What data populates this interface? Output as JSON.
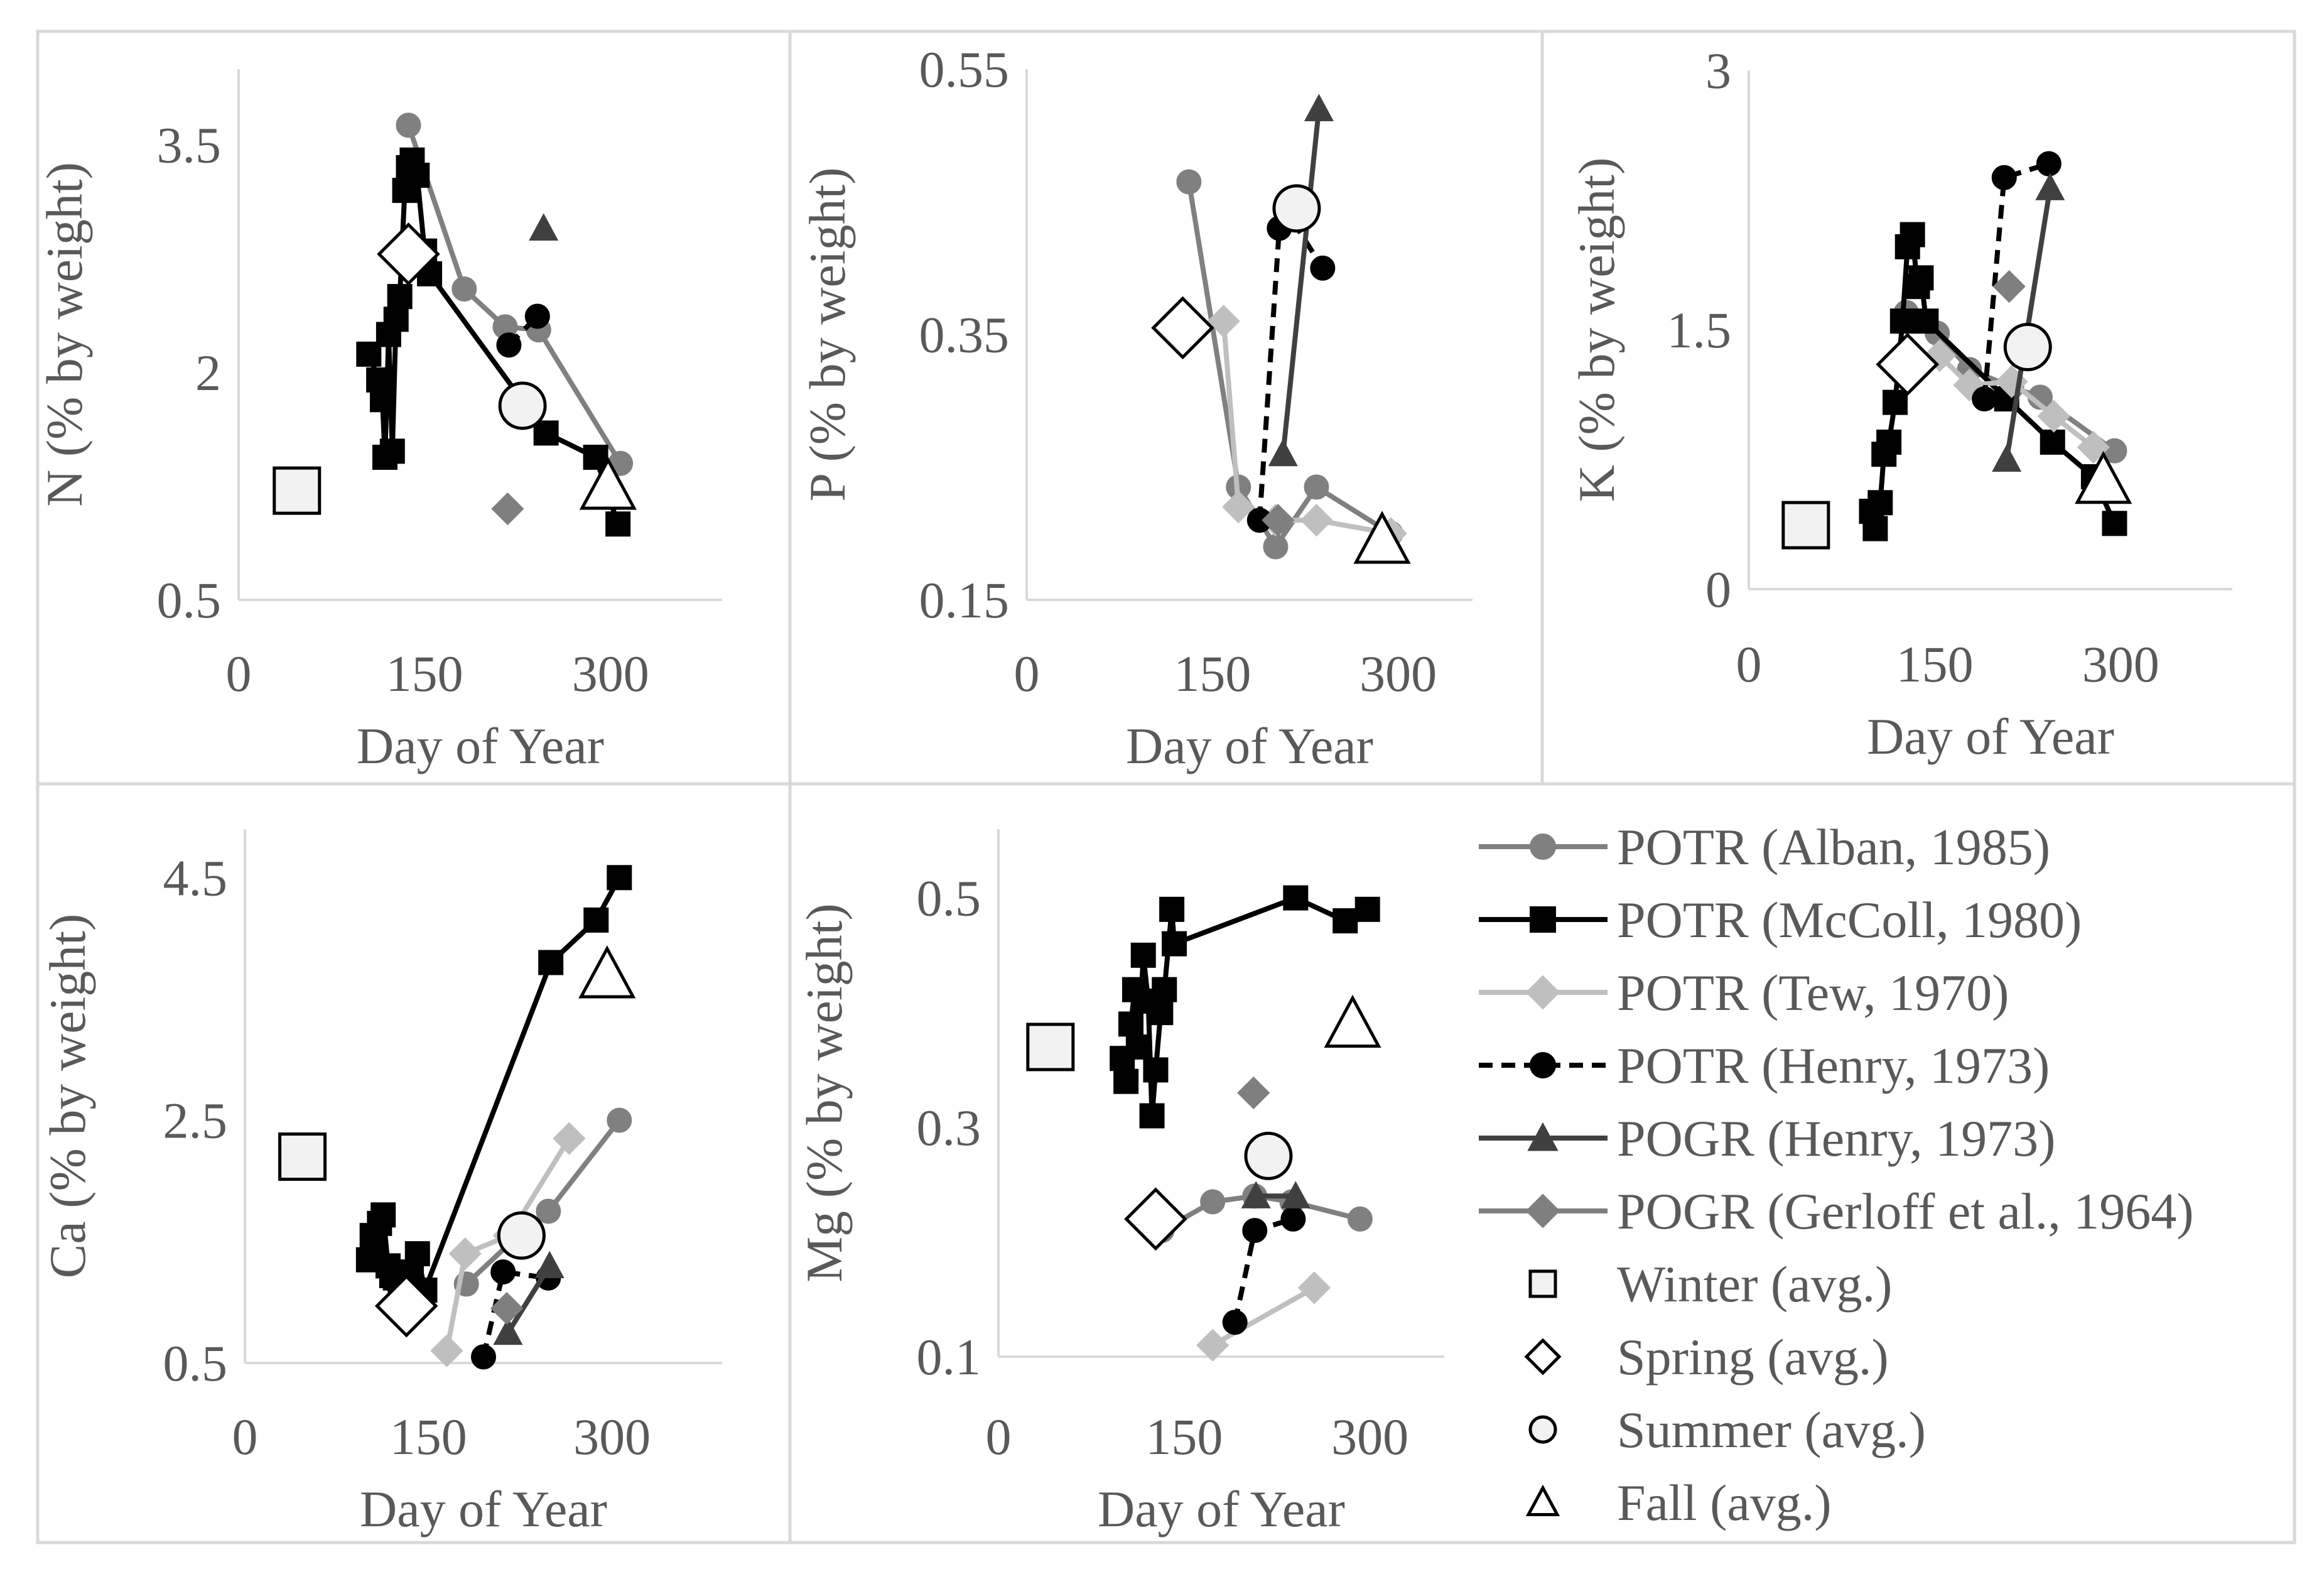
{
  "legend": [
    {
      "key": "alban",
      "label": "POTR (Alban, 1985)",
      "color": "#808080",
      "marker": "circle",
      "dash": false,
      "line": true
    },
    {
      "key": "mccoll",
      "label": "POTR (McColl, 1980)",
      "color": "#000000",
      "marker": "square",
      "dash": false,
      "line": true
    },
    {
      "key": "tew",
      "label": "POTR (Tew, 1970)",
      "color": "#bfbfbf",
      "marker": "diamond",
      "dash": false,
      "line": true
    },
    {
      "key": "henry_potr",
      "label": "POTR (Henry, 1973)",
      "color": "#000000",
      "marker": "circle",
      "dash": true,
      "line": true
    },
    {
      "key": "henry_pogr",
      "label": "POGR (Henry, 1973)",
      "color": "#404040",
      "marker": "triangle",
      "dash": false,
      "line": true
    },
    {
      "key": "gerloff",
      "label": "POGR (Gerloff et al., 1964)",
      "color": "#7f7f7f",
      "marker": "diamond",
      "dash": false,
      "line": true
    },
    {
      "key": "winter",
      "label": "Winter (avg.)",
      "color": "#f2f2f2",
      "marker": "square",
      "dash": false,
      "line": false
    },
    {
      "key": "spring",
      "label": "Spring (avg.)",
      "color": "#ffffff",
      "marker": "diamond",
      "dash": false,
      "line": false
    },
    {
      "key": "summer",
      "label": "Summer (avg.)",
      "color": "#f2f2f2",
      "marker": "circle",
      "dash": false,
      "line": false
    },
    {
      "key": "fall",
      "label": "Fall (avg.)",
      "color": "#ffffff",
      "marker": "triangle",
      "dash": false,
      "line": false
    }
  ],
  "chart_data": [
    {
      "type": "line",
      "id": "N",
      "xlabel": "Day of Year",
      "ylabel": "N (% by weight)",
      "xlim": [
        0,
        390
      ],
      "ylim": [
        0.5,
        4.0
      ],
      "xticks": [
        "0",
        "150",
        "300"
      ],
      "xtick_values": [
        0,
        150,
        300
      ],
      "yticks": [
        "0.5",
        "2",
        "3.5"
      ],
      "ytick_values": [
        0.5,
        2,
        3.5
      ],
      "series": [
        {
          "key": "alban",
          "x": [
            137,
            182,
            215,
            242,
            308
          ],
          "y": [
            3.63,
            2.55,
            2.3,
            2.28,
            1.4
          ]
        },
        {
          "key": "mccoll",
          "x": [
            105,
            113,
            116,
            118,
            121,
            124,
            127,
            130,
            134,
            137,
            140,
            144,
            150,
            154,
            248,
            288,
            306
          ],
          "y": [
            2.12,
            1.95,
            1.82,
            1.44,
            2.25,
            1.48,
            2.35,
            2.5,
            3.2,
            3.35,
            3.4,
            3.3,
            2.8,
            2.65,
            1.6,
            1.44,
            1.0
          ]
        },
        {
          "key": "henry_potr",
          "x": [
            218,
            241
          ],
          "y": [
            2.18,
            2.37
          ]
        },
        {
          "key": "henry_pogr",
          "x": [
            246
          ],
          "y": [
            2.95
          ]
        },
        {
          "key": "gerloff",
          "x": [
            217
          ],
          "y": [
            1.1
          ]
        },
        {
          "key": "winter",
          "x": [
            47
          ],
          "y": [
            1.22
          ]
        },
        {
          "key": "spring",
          "x": [
            137
          ],
          "y": [
            2.78
          ]
        },
        {
          "key": "summer",
          "x": [
            229
          ],
          "y": [
            1.78
          ]
        },
        {
          "key": "fall",
          "x": [
            298
          ],
          "y": [
            1.25
          ]
        }
      ]
    },
    {
      "type": "line",
      "id": "P",
      "xlabel": "Day of Year",
      "ylabel": "P (% by weight)",
      "xlim": [
        0,
        360
      ],
      "ylim": [
        0.15,
        0.55
      ],
      "xticks": [
        "0",
        "150",
        "300"
      ],
      "xtick_values": [
        0,
        150,
        300
      ],
      "yticks": [
        "0.15",
        "0.35",
        "0.55"
      ],
      "ytick_values": [
        0.15,
        0.35,
        0.55
      ],
      "series": [
        {
          "key": "alban",
          "x": [
            131,
            171,
            201,
            234,
            294
          ],
          "y": [
            0.465,
            0.235,
            0.19,
            0.235,
            0.2
          ]
        },
        {
          "key": "tew",
          "x": [
            159,
            171,
            201,
            234,
            294
          ],
          "y": [
            0.36,
            0.22,
            0.21,
            0.21,
            0.2
          ]
        },
        {
          "key": "henry_potr",
          "x": [
            188,
            204,
            212,
            239
          ],
          "y": [
            0.21,
            0.43,
            0.44,
            0.4
          ]
        },
        {
          "key": "henry_pogr",
          "x": [
            207,
            236
          ],
          "y": [
            0.26,
            0.52
          ]
        },
        {
          "key": "gerloff",
          "x": [
            203
          ],
          "y": [
            0.21
          ]
        },
        {
          "key": "spring",
          "x": [
            126
          ],
          "y": [
            0.355
          ]
        },
        {
          "key": "summer",
          "x": [
            218
          ],
          "y": [
            0.445
          ]
        },
        {
          "key": "fall",
          "x": [
            287
          ],
          "y": [
            0.195
          ]
        }
      ]
    },
    {
      "type": "line",
      "id": "K",
      "xlabel": "Day of Year",
      "ylabel": "K (% by weight)",
      "xlim": [
        0,
        390
      ],
      "ylim": [
        0,
        3
      ],
      "xticks": [
        "0",
        "150",
        "300"
      ],
      "xtick_values": [
        0,
        150,
        300
      ],
      "yticks": [
        "0",
        "1.5",
        "3"
      ],
      "ytick_values": [
        0,
        1.5,
        3
      ],
      "series": [
        {
          "key": "alban",
          "x": [
            127,
            152,
            178,
            212,
            235,
            295
          ],
          "y": [
            1.6,
            1.48,
            1.27,
            1.17,
            1.11,
            0.8
          ]
        },
        {
          "key": "mccoll",
          "x": [
            99,
            102,
            106,
            109,
            113,
            118,
            124,
            128,
            132,
            136,
            139,
            143,
            208,
            245,
            278,
            295
          ],
          "y": [
            0.45,
            0.35,
            0.5,
            0.78,
            0.85,
            1.08,
            1.55,
            1.98,
            2.05,
            1.75,
            1.8,
            1.55,
            1.1,
            0.85,
            0.65,
            0.38
          ]
        },
        {
          "key": "tew",
          "x": [
            154,
            178,
            212,
            246,
            278
          ],
          "y": [
            1.35,
            1.18,
            1.2,
            1.0,
            0.82
          ]
        },
        {
          "key": "henry_potr",
          "x": [
            190,
            206,
            242
          ],
          "y": [
            1.1,
            2.38,
            2.46
          ]
        },
        {
          "key": "henry_pogr",
          "x": [
            208,
            243
          ],
          "y": [
            0.75,
            2.32
          ]
        },
        {
          "key": "gerloff",
          "x": [
            210
          ],
          "y": [
            1.75
          ]
        },
        {
          "key": "winter",
          "x": [
            46
          ],
          "y": [
            0.37
          ]
        },
        {
          "key": "spring",
          "x": [
            128
          ],
          "y": [
            1.3
          ]
        },
        {
          "key": "summer",
          "x": [
            225
          ],
          "y": [
            1.4
          ]
        },
        {
          "key": "fall",
          "x": [
            286
          ],
          "y": [
            0.63
          ]
        }
      ]
    },
    {
      "type": "line",
      "id": "Ca",
      "xlabel": "Day of Year",
      "ylabel": "Ca (% by weight)",
      "xlim": [
        0,
        390
      ],
      "ylim": [
        0.5,
        4.9
      ],
      "xticks": [
        "0",
        "150",
        "300"
      ],
      "xtick_values": [
        0,
        150,
        300
      ],
      "yticks": [
        "0.5",
        "2.5",
        "4.5"
      ],
      "ytick_values": [
        0.5,
        2.5,
        4.5
      ],
      "series": [
        {
          "key": "alban",
          "x": [
            181,
            218,
            248,
            306
          ],
          "y": [
            1.15,
            1.5,
            1.75,
            2.5
          ]
        },
        {
          "key": "mccoll",
          "x": [
            101,
            104,
            106,
            110,
            113,
            117,
            120,
            123,
            127,
            130,
            136,
            141,
            147,
            250,
            287,
            306
          ],
          "y": [
            1.35,
            1.55,
            1.45,
            1.65,
            1.72,
            1.3,
            1.22,
            1.2,
            1.15,
            1.1,
            1.25,
            1.4,
            1.1,
            3.8,
            4.15,
            4.5
          ]
        },
        {
          "key": "tew",
          "x": [
            165,
            180,
            216,
            265
          ],
          "y": [
            0.6,
            1.4,
            1.55,
            2.35
          ]
        },
        {
          "key": "henry_potr",
          "x": [
            195,
            211,
            248
          ],
          "y": [
            0.55,
            1.25,
            1.2
          ]
        },
        {
          "key": "henry_pogr",
          "x": [
            215,
            249
          ],
          "y": [
            0.75,
            1.3
          ]
        },
        {
          "key": "gerloff",
          "x": [
            214
          ],
          "y": [
            0.95
          ]
        },
        {
          "key": "winter",
          "x": [
            47
          ],
          "y": [
            2.2
          ]
        },
        {
          "key": "spring",
          "x": [
            132
          ],
          "y": [
            0.97
          ]
        },
        {
          "key": "summer",
          "x": [
            226
          ],
          "y": [
            1.55
          ]
        },
        {
          "key": "fall",
          "x": [
            296
          ],
          "y": [
            3.7
          ]
        }
      ]
    },
    {
      "type": "line",
      "id": "Mg",
      "xlabel": "Day of Year",
      "ylabel": "Mg (% by weight)",
      "xlim": [
        0,
        360
      ],
      "ylim": [
        0.1,
        0.56
      ],
      "xticks": [
        "0",
        "150",
        "300"
      ],
      "xtick_values": [
        0,
        150,
        300
      ],
      "yticks": [
        "0.1",
        "0.3",
        "0.5"
      ],
      "ytick_values": [
        0.1,
        0.3,
        0.5
      ],
      "series": [
        {
          "key": "alban",
          "x": [
            132,
            173,
            207,
            237,
            292
          ],
          "y": [
            0.21,
            0.235,
            0.24,
            0.235,
            0.22
          ]
        },
        {
          "key": "mccoll",
          "x": [
            100,
            103,
            107,
            110,
            113,
            117,
            121,
            124,
            127,
            131,
            134,
            140,
            142,
            240,
            280,
            298
          ],
          "y": [
            0.36,
            0.34,
            0.39,
            0.42,
            0.37,
            0.45,
            0.41,
            0.31,
            0.35,
            0.4,
            0.42,
            0.49,
            0.46,
            0.5,
            0.48,
            0.49
          ]
        },
        {
          "key": "tew",
          "x": [
            173,
            255
          ],
          "y": [
            0.11,
            0.16
          ]
        },
        {
          "key": "henry_potr",
          "x": [
            191,
            207,
            238
          ],
          "y": [
            0.13,
            0.21,
            0.22
          ]
        },
        {
          "key": "henry_pogr",
          "x": [
            208,
            240
          ],
          "y": [
            0.24,
            0.24
          ]
        },
        {
          "key": "gerloff",
          "x": [
            206
          ],
          "y": [
            0.33
          ]
        },
        {
          "key": "winter",
          "x": [
            42
          ],
          "y": [
            0.37
          ]
        },
        {
          "key": "spring",
          "x": [
            127
          ],
          "y": [
            0.22
          ]
        },
        {
          "key": "summer",
          "x": [
            218
          ],
          "y": [
            0.275
          ]
        },
        {
          "key": "fall",
          "x": [
            286
          ],
          "y": [
            0.39
          ]
        }
      ]
    }
  ]
}
